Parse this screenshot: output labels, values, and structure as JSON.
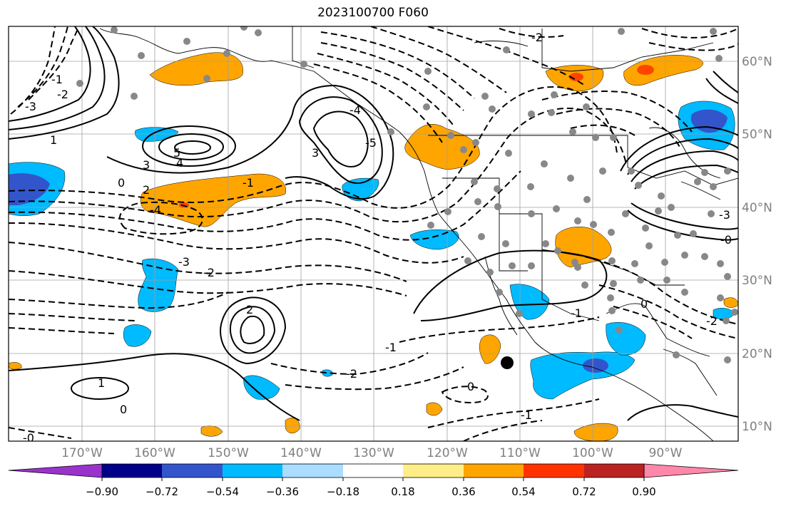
{
  "title": "2023100700 F060",
  "map": {
    "lon_labels": [
      "170°W",
      "160°W",
      "150°W",
      "140°W",
      "130°W",
      "120°W",
      "110°W",
      "100°W",
      "90°W"
    ],
    "lat_labels": [
      "60°N",
      "50°N",
      "40°N",
      "30°N",
      "20°N",
      "10°N"
    ],
    "lon_values": [
      -170,
      -160,
      -150,
      -140,
      -130,
      -120,
      -110,
      -100,
      -90
    ],
    "lat_values": [
      60,
      50,
      40,
      30,
      20,
      10
    ],
    "extent": {
      "lon_min": -180,
      "lon_max": -80,
      "lat_min": 8,
      "lat_max": 66
    },
    "gridlines": true,
    "contour_labels": [
      "1",
      "2",
      "3",
      "5",
      "4",
      "3",
      "0",
      "-1",
      "-2",
      "-3",
      "-4",
      "-5",
      "-1",
      "-2",
      "-3",
      "-4",
      "-0",
      "-1",
      "-2",
      "0",
      "-1",
      "-2",
      "2",
      "0",
      "1",
      "-1",
      "0",
      "-2",
      "-3",
      "-0"
    ]
  },
  "colorbar": {
    "ticks": [
      "−0.90",
      "−0.72",
      "−0.54",
      "−0.36",
      "−0.18",
      "0.18",
      "0.36",
      "0.54",
      "0.72",
      "0.90"
    ],
    "colors": [
      "#9933cc",
      "#000088",
      "#3355cc",
      "#00bbff",
      "#aaddff",
      "#ffffff",
      "#ffee88",
      "#ffa500",
      "#ff3300",
      "#bb2222",
      "#ff88aa"
    ],
    "extend": "both"
  },
  "colors": {
    "orange": "#ffa500",
    "red": "#ff4400",
    "light_blue": "#00bbff",
    "blue": "#3355cc",
    "station": "#888888"
  }
}
